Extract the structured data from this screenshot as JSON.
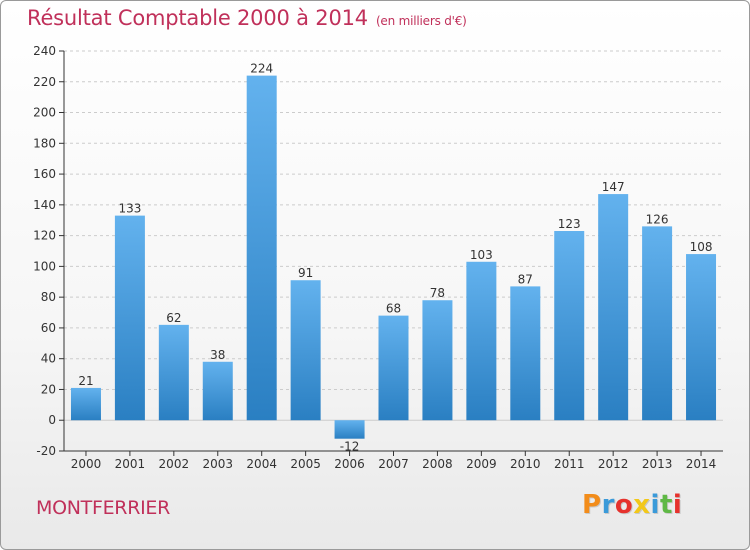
{
  "title": "Résultat Comptable 2000 à 2014",
  "subtitle": "(en milliers d'€)",
  "commune": "MONTFERRIER",
  "logo": {
    "text": "Proxiti",
    "letters": [
      "P",
      "r",
      "o",
      "x",
      "i",
      "t",
      "i"
    ],
    "colors": [
      "#f28c1a",
      "#3a9ad9",
      "#e6322d",
      "#f2c81a",
      "#3a9ad9",
      "#5fb845",
      "#e6322d"
    ]
  },
  "colors": {
    "title": "#c0305a",
    "bar_top": "#63b2ee",
    "bar_bottom": "#2a7fc2",
    "grid": "#cccccc",
    "axis": "#333333"
  },
  "chart_data": {
    "type": "bar",
    "title": "Résultat Comptable 2000 à 2014",
    "xlabel": "",
    "ylabel": "en milliers d'€",
    "categories": [
      "2000",
      "2001",
      "2002",
      "2003",
      "2004",
      "2005",
      "2006",
      "2007",
      "2008",
      "2009",
      "2010",
      "2011",
      "2012",
      "2013",
      "2014"
    ],
    "values": [
      21,
      133,
      62,
      38,
      224,
      91,
      -12,
      68,
      78,
      103,
      87,
      123,
      147,
      126,
      108
    ],
    "data_labels": [
      "21",
      "133",
      "62",
      "38",
      "224",
      "91",
      "-12",
      "68",
      "78",
      "103",
      "87",
      "123",
      "147",
      "126",
      "108"
    ],
    "ylim": [
      -20,
      240
    ],
    "yticks": [
      -20,
      0,
      20,
      40,
      60,
      80,
      100,
      120,
      140,
      160,
      180,
      200,
      220,
      240
    ],
    "grid": true
  }
}
